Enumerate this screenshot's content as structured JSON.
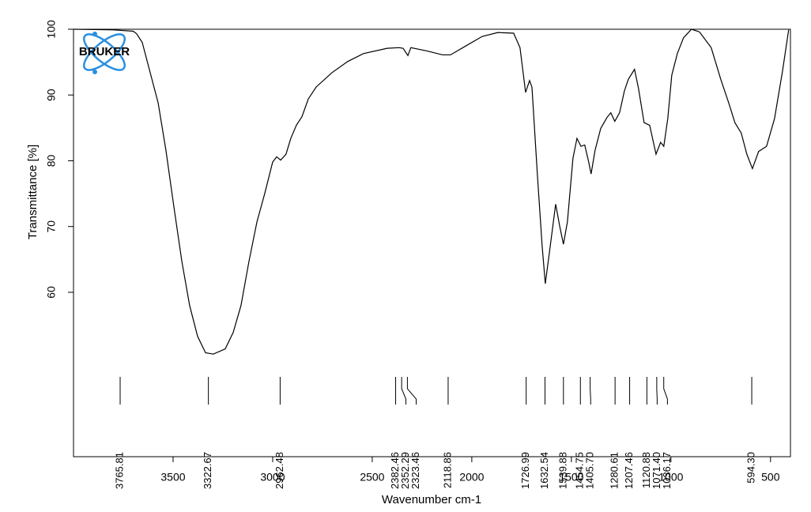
{
  "chart_data": {
    "type": "line",
    "logo": "BRUKER",
    "xlabel": "Wavenumber cm-1",
    "ylabel": "Transmittance [%]",
    "color": "#000000",
    "xlim": [
      4000,
      400
    ],
    "ylim": [
      35,
      100
    ],
    "xticks": [
      3500,
      3000,
      2500,
      2000,
      1500,
      1000,
      500
    ],
    "yticks": [
      60,
      70,
      80,
      90,
      100
    ],
    "x": [
      4000,
      3800,
      3700,
      3683,
      3655,
      3575,
      3536,
      3496,
      3456,
      3417,
      3377,
      3337,
      3298,
      3238,
      3198,
      3159,
      3119,
      3079,
      3040,
      3000,
      2980,
      2960,
      2933,
      2909,
      2881,
      2853,
      2821,
      2782,
      2702,
      2623,
      2544,
      2425,
      2365,
      2345,
      2321,
      2306,
      2226,
      2147,
      2107,
      2028,
      1948,
      1869,
      1790,
      1758,
      1730,
      1710,
      1698,
      1671,
      1647,
      1631,
      1611,
      1579,
      1559,
      1540,
      1520,
      1492,
      1472,
      1452,
      1433,
      1413,
      1401,
      1381,
      1353,
      1321,
      1302,
      1282,
      1258,
      1234,
      1214,
      1183,
      1163,
      1135,
      1107,
      1075,
      1052,
      1036,
      1016,
      996,
      968,
      937,
      897,
      857,
      798,
      750,
      710,
      679,
      647,
      619,
      591,
      560,
      520,
      480,
      440,
      409
    ],
    "values": [
      100,
      99.9,
      99.7,
      99.3,
      98,
      88.8,
      81.6,
      73,
      64.7,
      58,
      53.3,
      50.8,
      50.6,
      51.4,
      53.9,
      58,
      64.7,
      70.7,
      75,
      79.8,
      80.6,
      80.1,
      81,
      83.4,
      85.4,
      86.7,
      89.4,
      91.2,
      93.4,
      95.1,
      96.3,
      97.1,
      97.2,
      97.1,
      96,
      97.2,
      96.7,
      96.1,
      96.1,
      97.5,
      98.9,
      99.5,
      99.4,
      97.2,
      90.4,
      92.2,
      91.2,
      78,
      67.1,
      61.3,
      65.9,
      73.4,
      70.1,
      67.3,
      70.7,
      80.4,
      83.4,
      82.2,
      82.4,
      79.8,
      78,
      81.6,
      84.9,
      86.6,
      87.3,
      86,
      87.3,
      90.6,
      92.4,
      93.9,
      91,
      85.8,
      85.4,
      81,
      82.8,
      82.2,
      86.4,
      93,
      96.3,
      98.7,
      100,
      99.6,
      97.2,
      92.4,
      88.8,
      85.8,
      84.2,
      81,
      78.8,
      81.4,
      82.2,
      86.4,
      93.6,
      99.9
    ],
    "peaks": [
      3765.81,
      3322.67,
      2962.48,
      2382.46,
      2352.29,
      2323.46,
      2118.86,
      1726.99,
      1632.54,
      1539.88,
      1454.75,
      {
        "value": 1405.7,
        "label": "1405.70"
      },
      1280.61,
      1207.46,
      1120.88,
      {
        "value": 1071.4,
        "label": "1071.40"
      },
      1036.17,
      {
        "value": 594.3,
        "label": "594.30"
      }
    ]
  }
}
